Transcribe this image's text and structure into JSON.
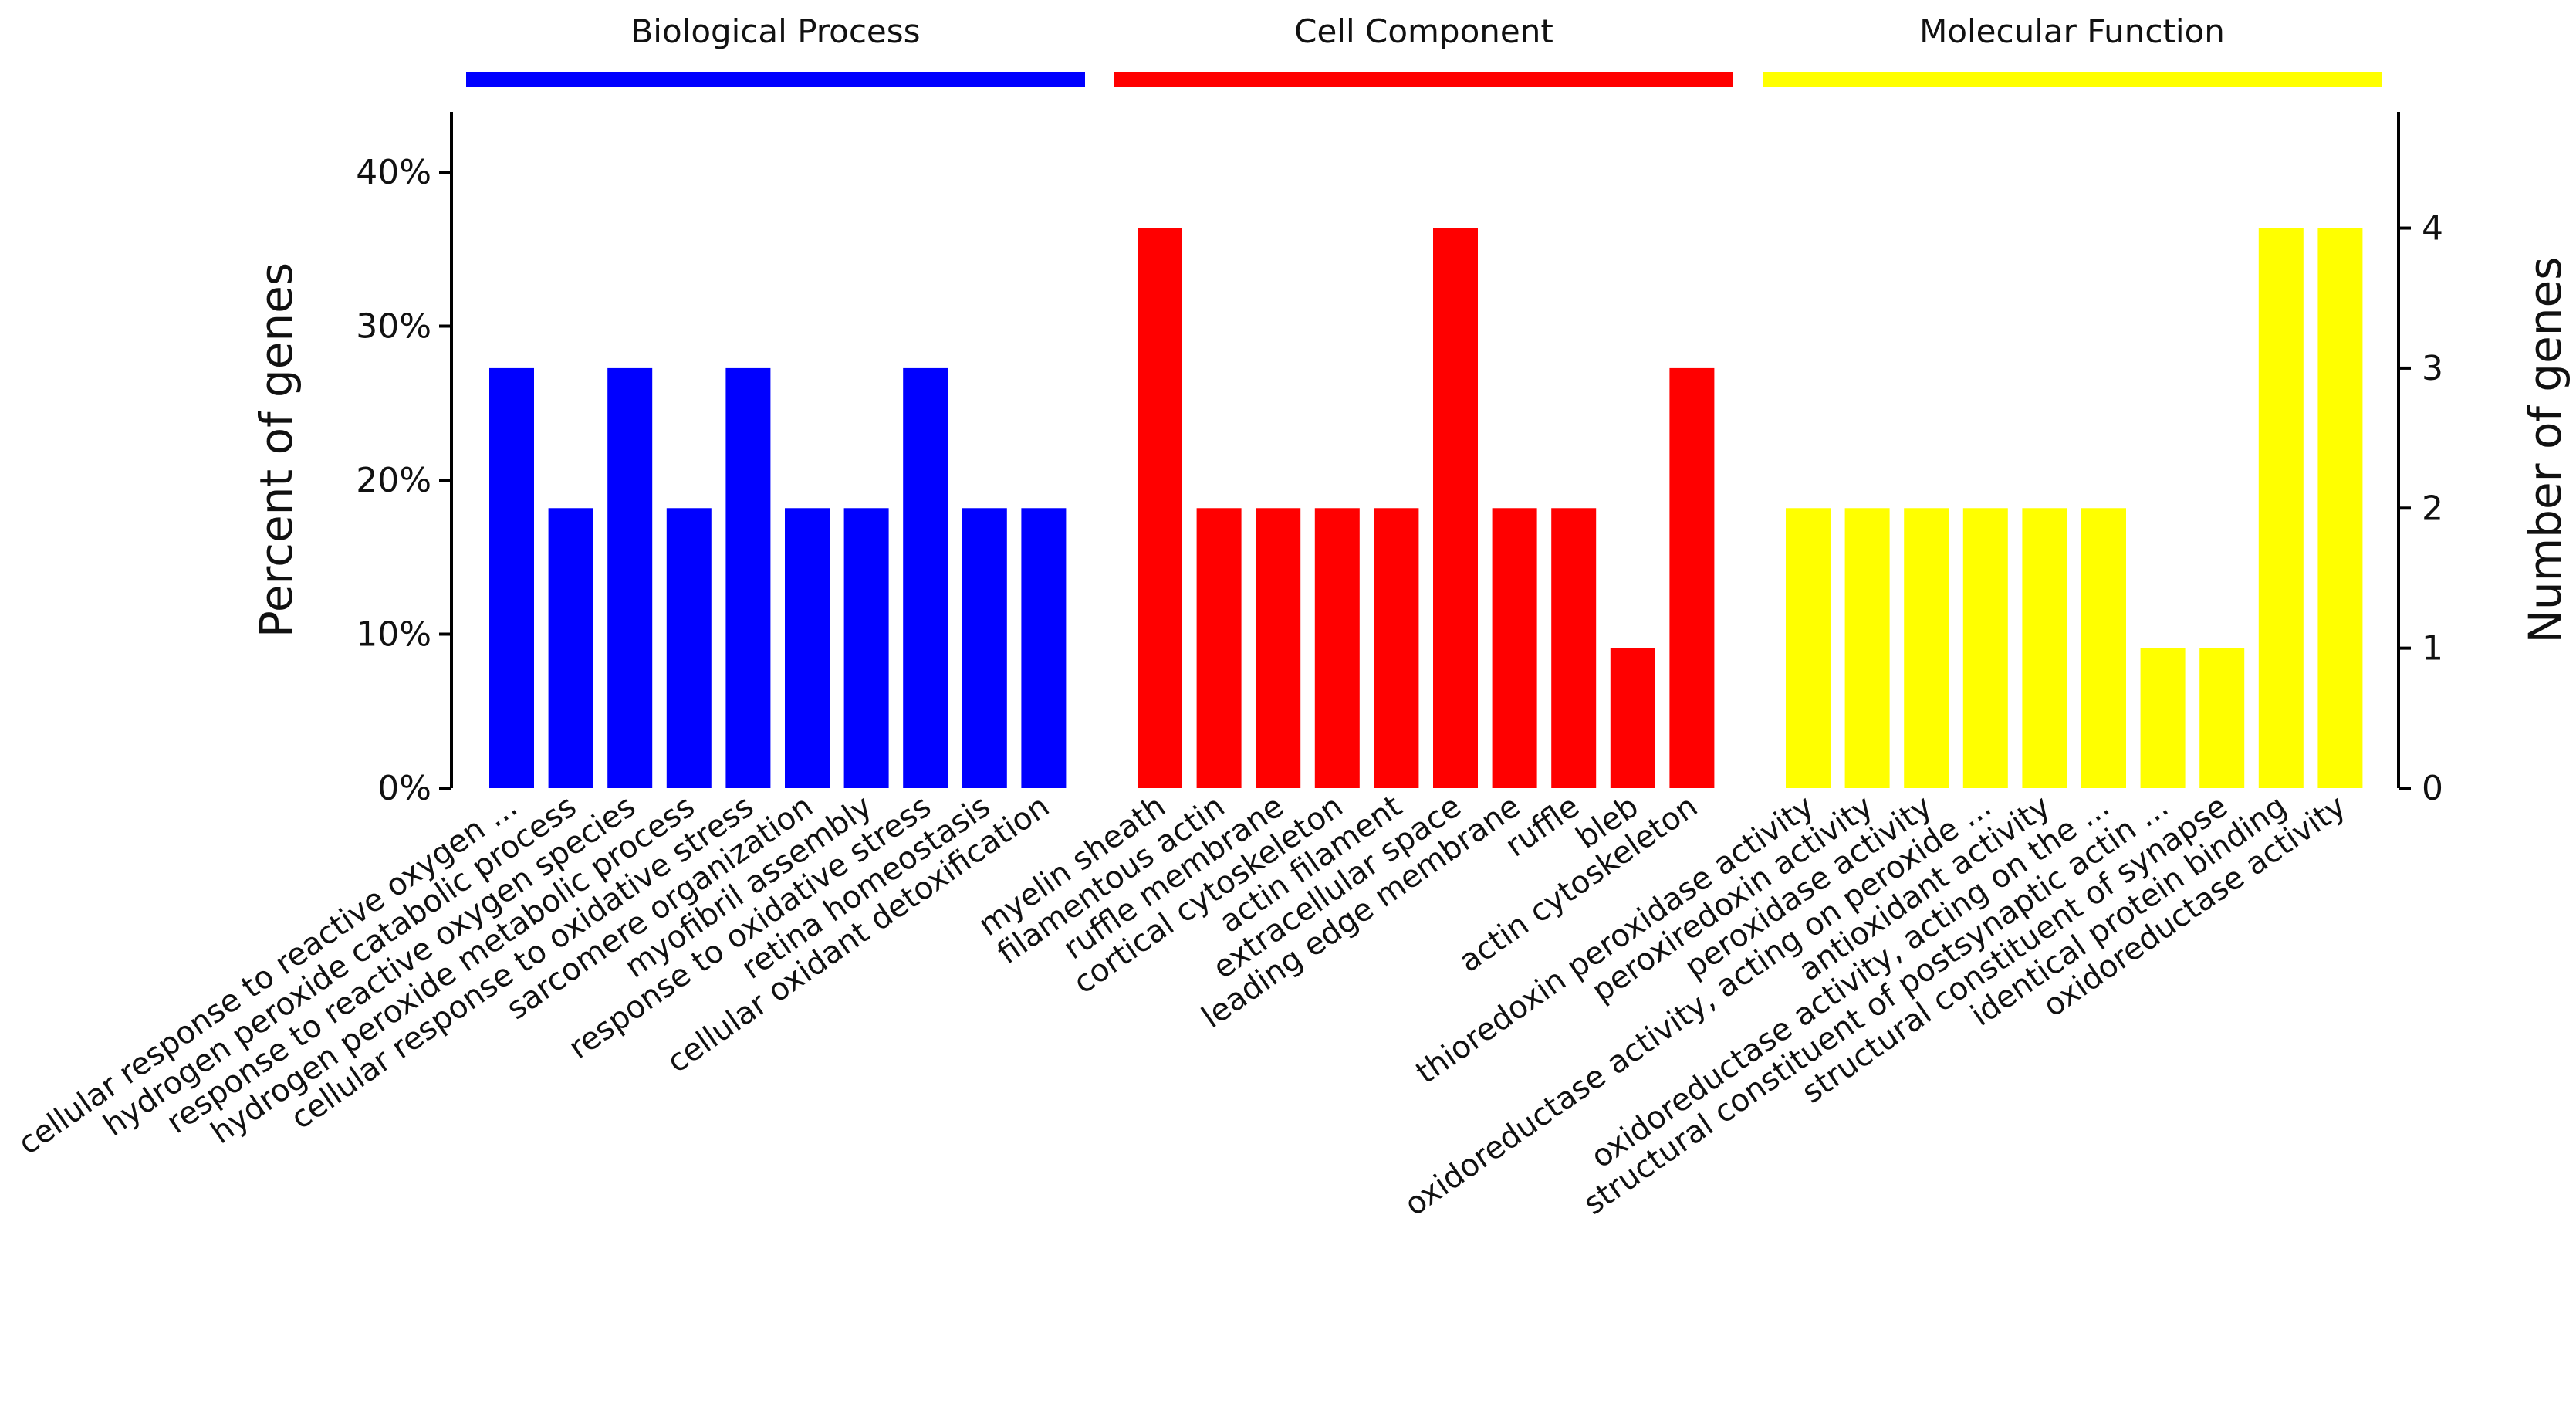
{
  "chart_data": {
    "type": "bar",
    "ylabel_left": "Percent of genes",
    "ylabel_right": "Number of genes",
    "left_ticks": [
      "0%",
      "10%",
      "20%",
      "30%",
      "40%"
    ],
    "left_ylim": [
      0,
      44
    ],
    "right_ticks": [
      "0",
      "1",
      "2",
      "3",
      "4"
    ],
    "right_ylim": [
      0,
      4.84
    ],
    "groups": [
      {
        "name": "Biological Process",
        "color": "#0000ff",
        "categories": [
          "cellular response to reactive oxygen ...",
          "hydrogen peroxide catabolic process",
          "response to reactive oxygen species",
          "hydrogen peroxide metabolic process",
          "cellular response to oxidative stress",
          "sarcomere organization",
          "myofibril assembly",
          "response to oxidative stress",
          "retina homeostasis",
          "cellular oxidant detoxification"
        ],
        "counts": [
          3,
          2,
          3,
          2,
          3,
          2,
          2,
          3,
          2,
          2
        ]
      },
      {
        "name": "Cell Component",
        "color": "#ff0000",
        "categories": [
          "myelin sheath",
          "filamentous actin",
          "ruffle membrane",
          "cortical cytoskeleton",
          "actin filament",
          "extracellular space",
          "leading edge membrane",
          "ruffle",
          "bleb",
          "actin cytoskeleton"
        ],
        "counts": [
          4,
          2,
          2,
          2,
          2,
          4,
          2,
          2,
          1,
          3
        ]
      },
      {
        "name": "Molecular Function",
        "color": "#ffff00",
        "categories": [
          "thioredoxin peroxidase activity",
          "peroxiredoxin activity",
          "peroxidase activity",
          "oxidoreductase activity, acting on peroxide ...",
          "antioxidant activity",
          "oxidoreductase activity, acting on the ...",
          "structural constituent of postsynaptic actin ...",
          "structural constituent of synapse",
          "identical protein binding",
          "oxidoreductase activity"
        ],
        "counts": [
          2,
          2,
          2,
          2,
          2,
          2,
          1,
          1,
          4,
          4
        ]
      }
    ]
  }
}
